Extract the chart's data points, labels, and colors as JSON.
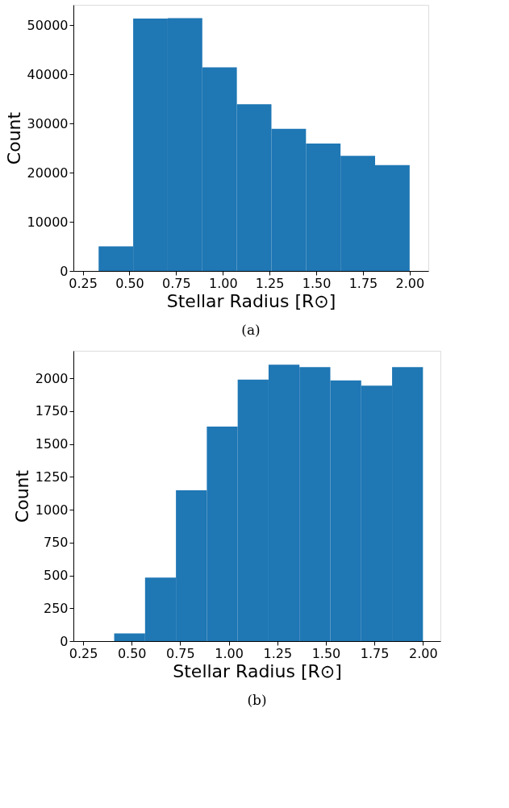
{
  "chart_data": [
    {
      "type": "histogram",
      "xlabel": "Stellar Radius [R⊙]",
      "ylabel": "Count",
      "color": "#1f77b4",
      "grid": false,
      "bins": [
        0.335,
        0.52,
        0.705,
        0.89,
        1.075,
        1.26,
        1.445,
        1.63,
        1.815,
        2.0
      ],
      "values": [
        5000,
        51300,
        51400,
        41400,
        33900,
        28900,
        25900,
        23400,
        21500
      ],
      "xlim": [
        0.2,
        2.1
      ],
      "ylim": [
        0,
        54100
      ],
      "xticks": [
        {
          "value": 0.25,
          "label": "0.25"
        },
        {
          "value": 0.5,
          "label": "0.50"
        },
        {
          "value": 0.75,
          "label": "0.75"
        },
        {
          "value": 1.0,
          "label": "1.00"
        },
        {
          "value": 1.25,
          "label": "1.25"
        },
        {
          "value": 1.5,
          "label": "1.50"
        },
        {
          "value": 1.75,
          "label": "1.75"
        },
        {
          "value": 2.0,
          "label": "2.00"
        }
      ],
      "yticks": [
        0,
        10000,
        20000,
        30000,
        40000,
        50000
      ],
      "annotations": [
        "(a)"
      ]
    },
    {
      "type": "histogram",
      "xlabel": "Stellar Radius [R⊙]",
      "ylabel": "Count",
      "color": "#1f77b4",
      "grid": false,
      "bins": [
        0.41,
        0.569,
        0.728,
        0.887,
        1.046,
        1.205,
        1.364,
        1.523,
        1.682,
        1.841,
        2.0
      ],
      "values": [
        58,
        483,
        1148,
        1633,
        1990,
        2104,
        2086,
        1984,
        1944,
        2086
      ],
      "xlim": [
        0.2,
        2.09
      ],
      "ylim": [
        0,
        2210
      ],
      "xticks": [
        {
          "value": 0.25,
          "label": "0.25"
        },
        {
          "value": 0.5,
          "label": "0.50"
        },
        {
          "value": 0.75,
          "label": "0.75"
        },
        {
          "value": 1.0,
          "label": "1.00"
        },
        {
          "value": 1.25,
          "label": "1.25"
        },
        {
          "value": 1.5,
          "label": "1.50"
        },
        {
          "value": 1.75,
          "label": "1.75"
        },
        {
          "value": 2.0,
          "label": "2.00"
        }
      ],
      "yticks": [
        0,
        250,
        500,
        750,
        1000,
        1250,
        1500,
        1750,
        2000
      ],
      "annotations": [
        "(b)"
      ]
    }
  ]
}
